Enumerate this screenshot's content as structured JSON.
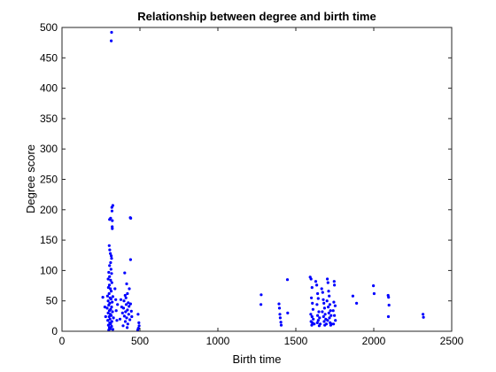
{
  "chart_data": {
    "type": "scatter",
    "title": "Relationship between degree and birth time",
    "xlabel": "Birth time",
    "ylabel": "Degree score",
    "xlim": [
      0,
      2500
    ],
    "ylim": [
      0,
      500
    ],
    "xticks": [
      0,
      500,
      1000,
      1500,
      2000,
      2500
    ],
    "yticks": [
      0,
      50,
      100,
      150,
      200,
      250,
      300,
      350,
      400,
      450,
      500
    ],
    "grid": false,
    "legend": "none",
    "marker_color": "#0000ff",
    "points": [
      [
        318,
        492
      ],
      [
        316,
        478
      ],
      [
        326,
        207
      ],
      [
        320,
        204
      ],
      [
        321,
        198
      ],
      [
        312,
        186
      ],
      [
        305,
        184
      ],
      [
        323,
        182
      ],
      [
        322,
        172
      ],
      [
        323,
        169
      ],
      [
        303,
        141
      ],
      [
        306,
        134
      ],
      [
        310,
        128
      ],
      [
        316,
        124
      ],
      [
        318,
        120
      ],
      [
        312,
        113
      ],
      [
        305,
        108
      ],
      [
        314,
        102
      ],
      [
        300,
        97
      ],
      [
        318,
        95
      ],
      [
        305,
        90
      ],
      [
        296,
        86
      ],
      [
        312,
        84
      ],
      [
        320,
        80
      ],
      [
        304,
        76
      ],
      [
        298,
        72
      ],
      [
        310,
        70
      ],
      [
        316,
        66
      ],
      [
        302,
        62
      ],
      [
        292,
        58
      ],
      [
        326,
        57
      ],
      [
        308,
        55
      ],
      [
        314,
        53
      ],
      [
        296,
        50
      ],
      [
        322,
        48
      ],
      [
        306,
        46
      ],
      [
        300,
        43
      ],
      [
        318,
        40
      ],
      [
        290,
        38
      ],
      [
        312,
        36
      ],
      [
        304,
        34
      ],
      [
        324,
        32
      ],
      [
        296,
        30
      ],
      [
        310,
        28
      ],
      [
        316,
        26
      ],
      [
        302,
        24
      ],
      [
        330,
        22
      ],
      [
        308,
        20
      ],
      [
        294,
        18
      ],
      [
        320,
        16
      ],
      [
        306,
        14
      ],
      [
        312,
        12
      ],
      [
        298,
        10
      ],
      [
        318,
        8
      ],
      [
        304,
        6
      ],
      [
        310,
        4
      ],
      [
        326,
        3
      ],
      [
        300,
        2
      ],
      [
        262,
        56
      ],
      [
        275,
        40
      ],
      [
        280,
        24
      ],
      [
        340,
        70
      ],
      [
        345,
        52
      ],
      [
        348,
        34
      ],
      [
        352,
        18
      ],
      [
        356,
        44
      ],
      [
        438,
        187
      ],
      [
        441,
        186
      ],
      [
        440,
        118
      ],
      [
        402,
        96
      ],
      [
        415,
        78
      ],
      [
        432,
        70
      ],
      [
        420,
        62
      ],
      [
        405,
        59
      ],
      [
        410,
        55
      ],
      [
        398,
        50
      ],
      [
        425,
        47
      ],
      [
        412,
        44
      ],
      [
        430,
        41
      ],
      [
        395,
        38
      ],
      [
        420,
        35
      ],
      [
        408,
        32
      ],
      [
        428,
        28
      ],
      [
        400,
        25
      ],
      [
        415,
        22
      ],
      [
        435,
        19
      ],
      [
        406,
        16
      ],
      [
        422,
        12
      ],
      [
        392,
        9
      ],
      [
        418,
        6
      ],
      [
        440,
        45
      ],
      [
        445,
        33
      ],
      [
        448,
        24
      ],
      [
        378,
        52
      ],
      [
        383,
        40
      ],
      [
        388,
        30
      ],
      [
        372,
        20
      ],
      [
        488,
        28
      ],
      [
        493,
        14
      ],
      [
        495,
        9
      ],
      [
        490,
        5
      ],
      [
        486,
        2
      ],
      [
        1278,
        60
      ],
      [
        1276,
        44
      ],
      [
        1392,
        45
      ],
      [
        1395,
        38
      ],
      [
        1398,
        28
      ],
      [
        1400,
        22
      ],
      [
        1404,
        15
      ],
      [
        1406,
        10
      ],
      [
        1446,
        85
      ],
      [
        1448,
        30
      ],
      [
        1592,
        89
      ],
      [
        1598,
        86
      ],
      [
        1604,
        72
      ],
      [
        1600,
        55
      ],
      [
        1606,
        46
      ],
      [
        1610,
        36
      ],
      [
        1596,
        28
      ],
      [
        1604,
        24
      ],
      [
        1612,
        20
      ],
      [
        1598,
        16
      ],
      [
        1606,
        14
      ],
      [
        1618,
        12
      ],
      [
        1602,
        10
      ],
      [
        1628,
        82
      ],
      [
        1634,
        76
      ],
      [
        1640,
        62
      ],
      [
        1644,
        54
      ],
      [
        1636,
        44
      ],
      [
        1648,
        32
      ],
      [
        1640,
        26
      ],
      [
        1652,
        22
      ],
      [
        1644,
        18
      ],
      [
        1638,
        14
      ],
      [
        1656,
        12
      ],
      [
        1650,
        9
      ],
      [
        1666,
        70
      ],
      [
        1672,
        64
      ],
      [
        1676,
        52
      ],
      [
        1680,
        46
      ],
      [
        1684,
        38
      ],
      [
        1670,
        32
      ],
      [
        1688,
        28
      ],
      [
        1678,
        24
      ],
      [
        1692,
        20
      ],
      [
        1682,
        16
      ],
      [
        1696,
        12
      ],
      [
        1686,
        10
      ],
      [
        1702,
        86
      ],
      [
        1706,
        80
      ],
      [
        1710,
        66
      ],
      [
        1714,
        58
      ],
      [
        1700,
        50
      ],
      [
        1718,
        44
      ],
      [
        1708,
        40
      ],
      [
        1722,
        34
      ],
      [
        1712,
        30
      ],
      [
        1726,
        26
      ],
      [
        1716,
        22
      ],
      [
        1704,
        18
      ],
      [
        1720,
        14
      ],
      [
        1730,
        12
      ],
      [
        1724,
        10
      ],
      [
        1746,
        82
      ],
      [
        1748,
        76
      ],
      [
        1744,
        48
      ],
      [
        1752,
        42
      ],
      [
        1740,
        34
      ],
      [
        1748,
        26
      ],
      [
        1754,
        18
      ],
      [
        1742,
        12
      ],
      [
        1866,
        58
      ],
      [
        1890,
        46
      ],
      [
        1998,
        75
      ],
      [
        2002,
        62
      ],
      [
        2092,
        59
      ],
      [
        2095,
        56
      ],
      [
        2098,
        43
      ],
      [
        2094,
        24
      ],
      [
        2316,
        28
      ],
      [
        2319,
        23
      ]
    ]
  }
}
